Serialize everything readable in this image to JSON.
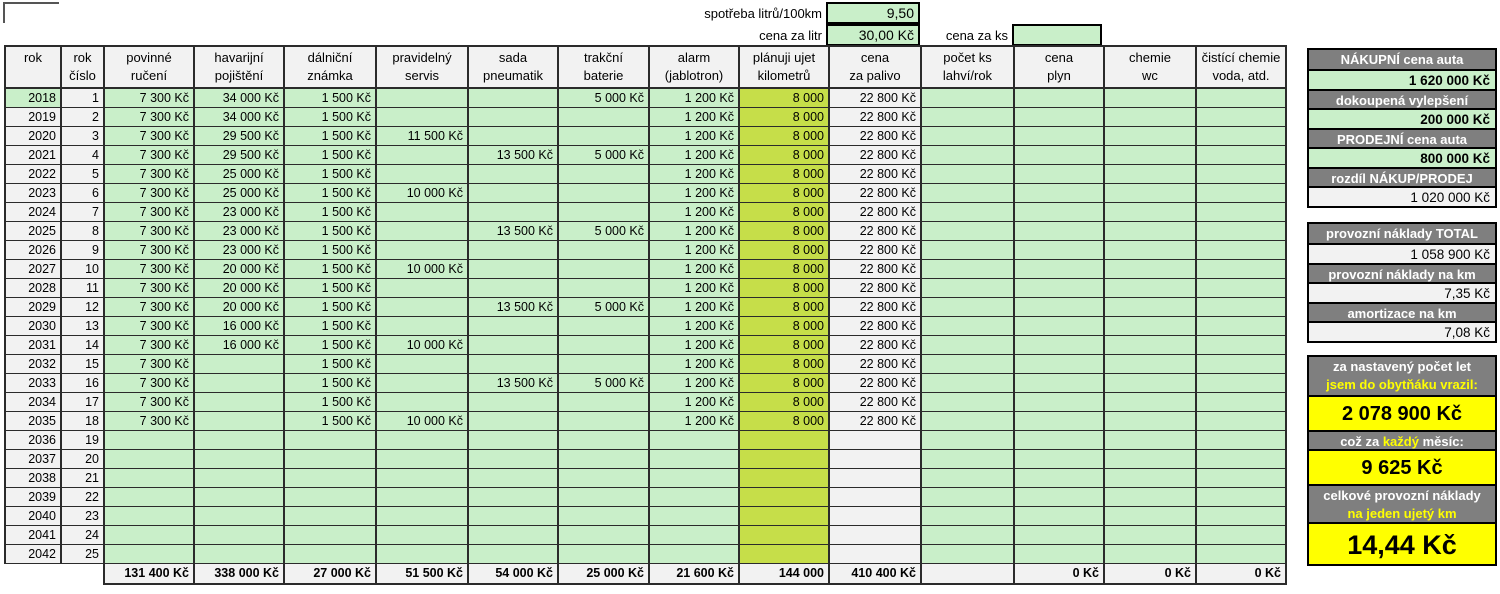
{
  "top": {
    "consumption_label": "spotřeba litrů/100km",
    "consumption_value": "9,50",
    "price_per_liter_label": "cena za litr",
    "price_per_liter_value": "30,00 Kč",
    "price_per_unit_label": "cena za ks",
    "price_per_unit_value": ""
  },
  "table": {
    "columns": [
      {
        "line1": "rok",
        "line2": ""
      },
      {
        "line1": "rok",
        "line2": "číslo"
      },
      {
        "line1": "povinné",
        "line2": "ručení"
      },
      {
        "line1": "havarijní",
        "line2": "pojištění"
      },
      {
        "line1": "dálniční",
        "line2": "známka"
      },
      {
        "line1": "pravidelný",
        "line2": "servis"
      },
      {
        "line1": "sada",
        "line2": "pneumatik"
      },
      {
        "line1": "trakční",
        "line2": "baterie"
      },
      {
        "line1": "alarm",
        "line2": "(jablotron)"
      },
      {
        "line1": "plánuji ujet",
        "line2": "kilometrů"
      },
      {
        "line1": "cena",
        "line2": "za palivo"
      },
      {
        "line1": "počet ks",
        "line2": "lahví/rok"
      },
      {
        "line1": "cena",
        "line2": "plyn"
      },
      {
        "line1": "chemie",
        "line2": "wc"
      },
      {
        "line1": "čistící chemie",
        "line2": "voda, atd."
      }
    ],
    "rows": [
      [
        "2018",
        "1",
        "7 300 Kč",
        "34 000 Kč",
        "1 500 Kč",
        "",
        "",
        "5 000 Kč",
        "1 200 Kč",
        "8 000",
        "22 800 Kč",
        "",
        "",
        "",
        ""
      ],
      [
        "2019",
        "2",
        "7 300 Kč",
        "34 000 Kč",
        "1 500 Kč",
        "",
        "",
        "",
        "1 200 Kč",
        "8 000",
        "22 800 Kč",
        "",
        "",
        "",
        ""
      ],
      [
        "2020",
        "3",
        "7 300 Kč",
        "29 500 Kč",
        "1 500 Kč",
        "11 500 Kč",
        "",
        "",
        "1 200 Kč",
        "8 000",
        "22 800 Kč",
        "",
        "",
        "",
        ""
      ],
      [
        "2021",
        "4",
        "7 300 Kč",
        "29 500 Kč",
        "1 500 Kč",
        "",
        "13 500 Kč",
        "5 000 Kč",
        "1 200 Kč",
        "8 000",
        "22 800 Kč",
        "",
        "",
        "",
        ""
      ],
      [
        "2022",
        "5",
        "7 300 Kč",
        "25 000 Kč",
        "1 500 Kč",
        "",
        "",
        "",
        "1 200 Kč",
        "8 000",
        "22 800 Kč",
        "",
        "",
        "",
        ""
      ],
      [
        "2023",
        "6",
        "7 300 Kč",
        "25 000 Kč",
        "1 500 Kč",
        "10 000 Kč",
        "",
        "",
        "1 200 Kč",
        "8 000",
        "22 800 Kč",
        "",
        "",
        "",
        ""
      ],
      [
        "2024",
        "7",
        "7 300 Kč",
        "23 000 Kč",
        "1 500 Kč",
        "",
        "",
        "",
        "1 200 Kč",
        "8 000",
        "22 800 Kč",
        "",
        "",
        "",
        ""
      ],
      [
        "2025",
        "8",
        "7 300 Kč",
        "23 000 Kč",
        "1 500 Kč",
        "",
        "13 500 Kč",
        "5 000 Kč",
        "1 200 Kč",
        "8 000",
        "22 800 Kč",
        "",
        "",
        "",
        ""
      ],
      [
        "2026",
        "9",
        "7 300 Kč",
        "23 000 Kč",
        "1 500 Kč",
        "",
        "",
        "",
        "1 200 Kč",
        "8 000",
        "22 800 Kč",
        "",
        "",
        "",
        ""
      ],
      [
        "2027",
        "10",
        "7 300 Kč",
        "20 000 Kč",
        "1 500 Kč",
        "10 000 Kč",
        "",
        "",
        "1 200 Kč",
        "8 000",
        "22 800 Kč",
        "",
        "",
        "",
        ""
      ],
      [
        "2028",
        "11",
        "7 300 Kč",
        "20 000 Kč",
        "1 500 Kč",
        "",
        "",
        "",
        "1 200 Kč",
        "8 000",
        "22 800 Kč",
        "",
        "",
        "",
        ""
      ],
      [
        "2029",
        "12",
        "7 300 Kč",
        "20 000 Kč",
        "1 500 Kč",
        "",
        "13 500 Kč",
        "5 000 Kč",
        "1 200 Kč",
        "8 000",
        "22 800 Kč",
        "",
        "",
        "",
        ""
      ],
      [
        "2030",
        "13",
        "7 300 Kč",
        "16 000 Kč",
        "1 500 Kč",
        "",
        "",
        "",
        "1 200 Kč",
        "8 000",
        "22 800 Kč",
        "",
        "",
        "",
        ""
      ],
      [
        "2031",
        "14",
        "7 300 Kč",
        "16 000 Kč",
        "1 500 Kč",
        "10 000 Kč",
        "",
        "",
        "1 200 Kč",
        "8 000",
        "22 800 Kč",
        "",
        "",
        "",
        ""
      ],
      [
        "2032",
        "15",
        "7 300 Kč",
        "",
        "1 500 Kč",
        "",
        "",
        "",
        "1 200 Kč",
        "8 000",
        "22 800 Kč",
        "",
        "",
        "",
        ""
      ],
      [
        "2033",
        "16",
        "7 300 Kč",
        "",
        "1 500 Kč",
        "",
        "13 500 Kč",
        "5 000 Kč",
        "1 200 Kč",
        "8 000",
        "22 800 Kč",
        "",
        "",
        "",
        ""
      ],
      [
        "2034",
        "17",
        "7 300 Kč",
        "",
        "1 500 Kč",
        "",
        "",
        "",
        "1 200 Kč",
        "8 000",
        "22 800 Kč",
        "",
        "",
        "",
        ""
      ],
      [
        "2035",
        "18",
        "7 300 Kč",
        "",
        "1 500 Kč",
        "10 000 Kč",
        "",
        "",
        "1 200 Kč",
        "8 000",
        "22 800 Kč",
        "",
        "",
        "",
        ""
      ],
      [
        "2036",
        "19",
        "",
        "",
        "",
        "",
        "",
        "",
        "",
        "",
        "",
        "",
        "",
        "",
        ""
      ],
      [
        "2037",
        "20",
        "",
        "",
        "",
        "",
        "",
        "",
        "",
        "",
        "",
        "",
        "",
        "",
        ""
      ],
      [
        "2038",
        "21",
        "",
        "",
        "",
        "",
        "",
        "",
        "",
        "",
        "",
        "",
        "",
        "",
        ""
      ],
      [
        "2039",
        "22",
        "",
        "",
        "",
        "",
        "",
        "",
        "",
        "",
        "",
        "",
        "",
        "",
        ""
      ],
      [
        "2040",
        "23",
        "",
        "",
        "",
        "",
        "",
        "",
        "",
        "",
        "",
        "",
        "",
        "",
        ""
      ],
      [
        "2041",
        "24",
        "",
        "",
        "",
        "",
        "",
        "",
        "",
        "",
        "",
        "",
        "",
        "",
        ""
      ],
      [
        "2042",
        "25",
        "",
        "",
        "",
        "",
        "",
        "",
        "",
        "",
        "",
        "",
        "",
        "",
        ""
      ]
    ],
    "total": [
      "",
      "",
      "131 400 Kč",
      "338 000 Kč",
      "27 000 Kč",
      "51 500 Kč",
      "54 000 Kč",
      "25 000 Kč",
      "21 600 Kč",
      "144 000",
      "410 400 Kč",
      "",
      "0 Kč",
      "0 Kč",
      "0 Kč"
    ]
  },
  "sidebar": {
    "purchase": {
      "label": "NÁKUPNÍ cena  auta",
      "value": "1 620 000 Kč"
    },
    "upgrades": {
      "label": "dokoupená vylepšení",
      "value": "200 000 Kč"
    },
    "sale": {
      "label": "PRODEJNÍ cena  auta",
      "value": "800 000 Kč"
    },
    "diff": {
      "label": "rozdíl NÁKUP/PRODEJ",
      "value": "1 020 000 Kč"
    },
    "operating_total": {
      "label": "provozní náklady TOTAL",
      "value": "1 058 900 Kč"
    },
    "operating_per_km": {
      "label": "provozní náklady na km",
      "value": "7,35 Kč"
    },
    "amortization_per_km": {
      "label": "amortizace na km",
      "value": "7,08 Kč"
    },
    "spent": {
      "label_line1": "za nastavený počet let",
      "label_line2": "jsem do obytňáku vrazil:",
      "value": "2 078 900 Kč"
    },
    "monthly": {
      "label_part1": "což za ",
      "label_part2": "každý",
      "label_part3": " měsíc:",
      "value": "9 625 Kč"
    },
    "per_km_total": {
      "label_line1": "celkové provozní náklady",
      "label_line2": "na jeden ujetý km",
      "value": "14,44 Kč"
    }
  },
  "colors": {
    "cell_green": "#c9efc9",
    "cell_lime": "#c6de49",
    "cell_gray": "#f2f2f2",
    "header_gray": "#7f7f7f",
    "highlight_yellow": "#ffff00"
  }
}
